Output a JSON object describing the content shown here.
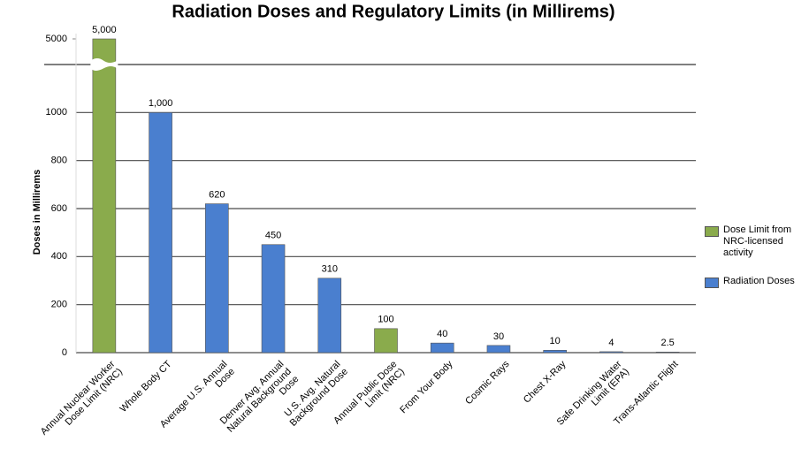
{
  "chart_data": {
    "type": "bar",
    "title": "Radiation Doses and Regulatory Limits (in Millirems)",
    "y_label": "Doses in Millirems",
    "categories": [
      "Annual Nuclear Worker Dose Limit (NRC)",
      "Whole Body CT",
      "Average U.S. Annual Dose",
      "Denver Avg. Annual Natural Background Dose",
      "U.S. Avg. Natural Background Dose",
      "Annual Public Dose Limit (NRC)",
      "From Your Body",
      "Cosmic Rays",
      "Chest X-Ray",
      "Safe Drinking Water Limit (EPA)",
      "Trans-Atlantic Flight"
    ],
    "series": [
      {
        "name": "Dose Limit from NRC-licensed activity",
        "color": "#8aab4c",
        "values": [
          5000,
          null,
          null,
          null,
          null,
          100,
          null,
          null,
          null,
          null,
          null
        ],
        "value_labels": [
          "5,000",
          null,
          null,
          null,
          null,
          "100",
          null,
          null,
          null,
          null,
          null
        ]
      },
      {
        "name": "Radiation Doses",
        "color": "#4a7fcf",
        "values": [
          null,
          1000,
          620,
          450,
          310,
          null,
          40,
          30,
          10,
          4,
          2.5
        ],
        "value_labels": [
          null,
          "1,000",
          "620",
          "450",
          "310",
          null,
          "40",
          "30",
          "10",
          "4",
          "2.5"
        ]
      }
    ],
    "ylim": [
      0,
      1200
    ],
    "yticks": [
      0,
      200,
      400,
      600,
      800,
      1000,
      5000
    ],
    "axis_break": true,
    "grid": true,
    "legend": "right"
  }
}
